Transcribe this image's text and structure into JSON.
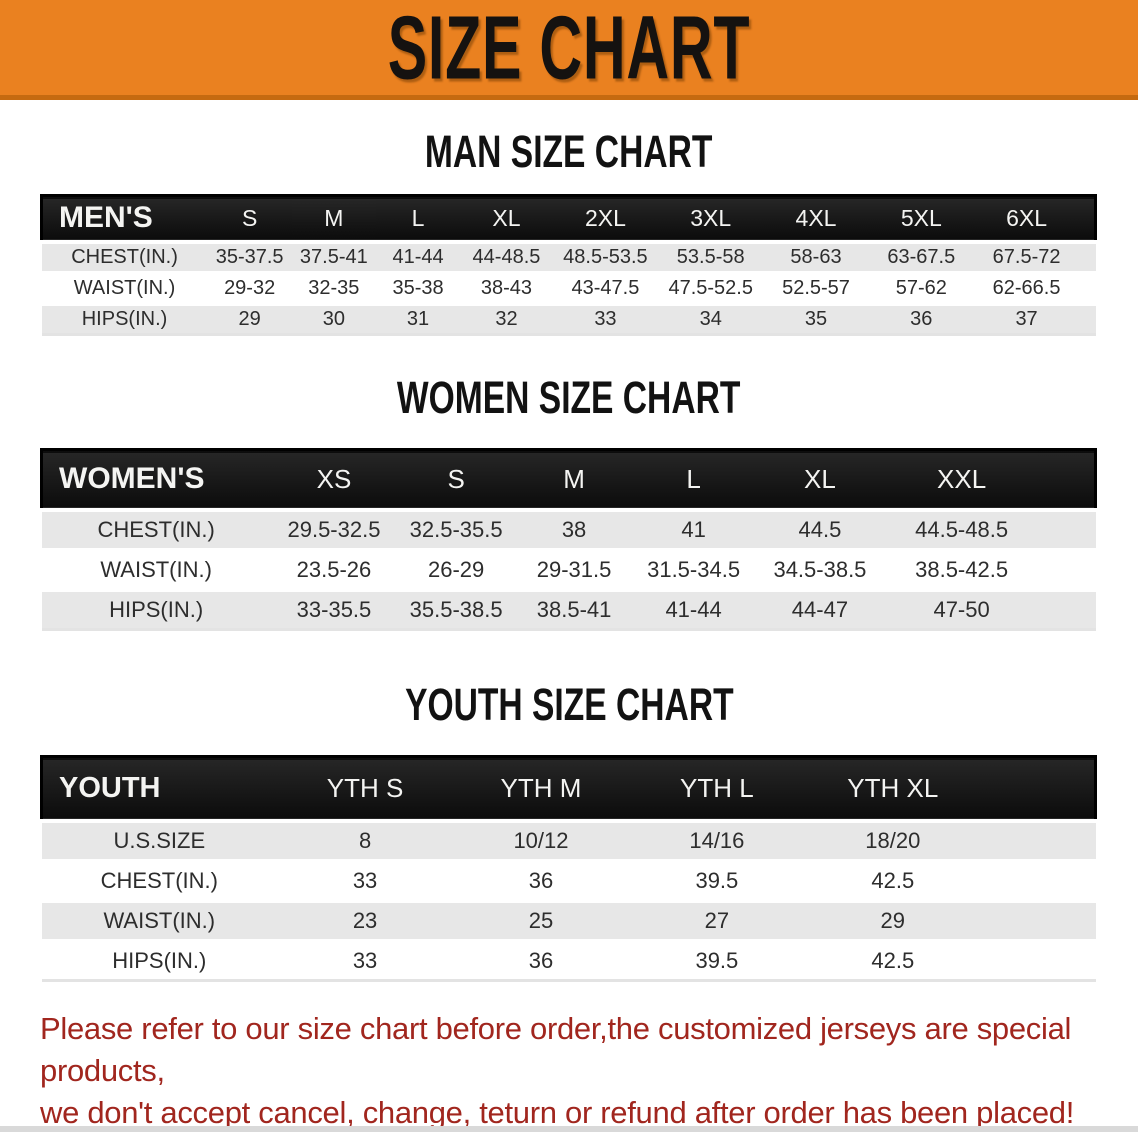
{
  "banner": {
    "title": "SIZE CHART"
  },
  "headings": {
    "men": "MAN SIZE CHART",
    "women": "WOMEN SIZE CHART",
    "youth": "YOUTH SIZE CHART"
  },
  "tables": {
    "men": {
      "label_header": "MEN'S",
      "columns": [
        "S",
        "M",
        "L",
        "XL",
        "2XL",
        "3XL",
        "4XL",
        "5XL",
        "6XL"
      ],
      "rows": [
        {
          "label": "CHEST(IN.)",
          "values": [
            "35-37.5",
            "37.5-41",
            "41-44",
            "44-48.5",
            "48.5-53.5",
            "53.5-58",
            "58-63",
            "63-67.5",
            "67.5-72"
          ]
        },
        {
          "label": "WAIST(IN.)",
          "values": [
            "29-32",
            "32-35",
            "35-38",
            "38-43",
            "43-47.5",
            "47.5-52.5",
            "52.5-57",
            "57-62",
            "62-66.5"
          ]
        },
        {
          "label": "HIPS(IN.)",
          "values": [
            "29",
            "30",
            "31",
            "32",
            "33",
            "34",
            "35",
            "36",
            "37"
          ]
        }
      ]
    },
    "women": {
      "label_header": "WOMEN'S",
      "columns": [
        "XS",
        "S",
        "M",
        "L",
        "XL",
        "XXL"
      ],
      "rows": [
        {
          "label": "CHEST(IN.)",
          "values": [
            "29.5-32.5",
            "32.5-35.5",
            "38",
            "41",
            "44.5",
            "44.5-48.5"
          ]
        },
        {
          "label": "WAIST(IN.)",
          "values": [
            "23.5-26",
            "26-29",
            "29-31.5",
            "31.5-34.5",
            "34.5-38.5",
            "38.5-42.5"
          ]
        },
        {
          "label": "HIPS(IN.)",
          "values": [
            "33-35.5",
            "35.5-38.5",
            "38.5-41",
            "41-44",
            "44-47",
            "47-50"
          ]
        }
      ]
    },
    "youth": {
      "label_header": "YOUTH",
      "columns": [
        "YTH S",
        "YTH M",
        "YTH L",
        "YTH XL"
      ],
      "rows": [
        {
          "label": "U.S.SIZE",
          "values": [
            "8",
            "10/12",
            "14/16",
            "18/20"
          ]
        },
        {
          "label": "CHEST(IN.)",
          "values": [
            "33",
            "36",
            "39.5",
            "42.5"
          ]
        },
        {
          "label": "WAIST(IN.)",
          "values": [
            "23",
            "25",
            "27",
            "29"
          ]
        },
        {
          "label": "HIPS(IN.)",
          "values": [
            "33",
            "36",
            "39.5",
            "42.5"
          ]
        }
      ]
    }
  },
  "footer": {
    "line1": "Please refer to our size chart before order,the customized jerseys are special products,",
    "line2": "we don't accept cancel, change, teturn or refund after order has been placed!"
  },
  "colors": {
    "banner_bg": "#EA8120",
    "banner_bottom_edge": "#C56A10",
    "header_bar": "#141414",
    "row_alt": "#E7E7E7",
    "footer_text": "#A1261E"
  }
}
